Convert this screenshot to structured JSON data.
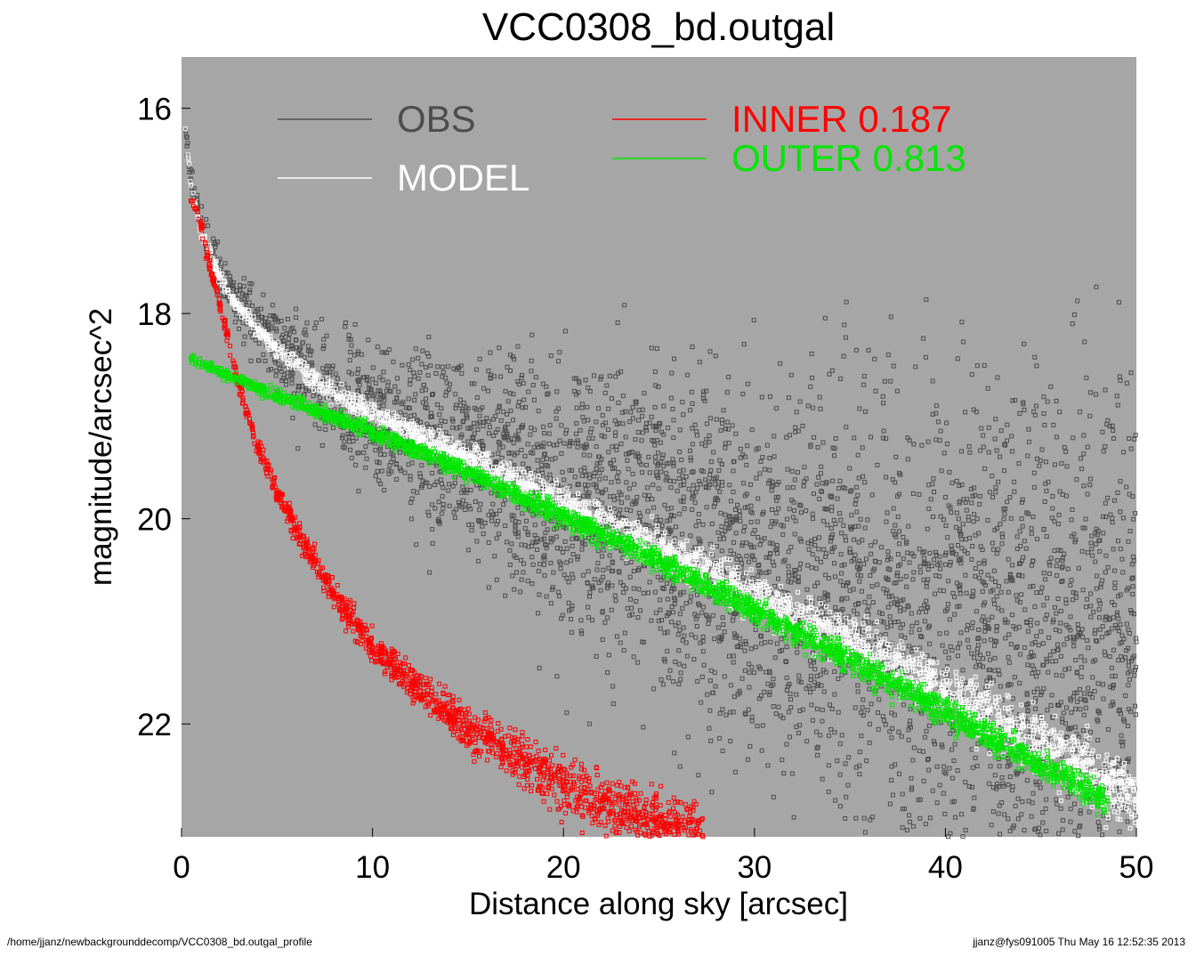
{
  "chart_data": {
    "type": "scatter",
    "title": "VCC0308_bd.outgal",
    "xlabel": "Distance along sky [arcsec]",
    "ylabel": "magnitude/arcsec^2",
    "xlim": [
      0,
      50
    ],
    "ylim": [
      23.1,
      15.5
    ],
    "y_inverted": true,
    "x_ticks": [
      0,
      10,
      20,
      30,
      40,
      50
    ],
    "y_ticks": [
      16,
      18,
      20,
      22
    ],
    "background_color": "#a6a6a6",
    "grid": false,
    "series": [
      {
        "name": "OBS",
        "color": "#4d4d4d",
        "x": [
          0.2,
          0.5,
          1,
          2,
          3,
          4,
          5,
          6,
          8,
          10,
          12,
          15,
          18,
          20,
          25,
          30,
          35,
          40,
          45,
          50
        ],
        "y": [
          16.2,
          16.7,
          17.1,
          17.6,
          17.9,
          18.1,
          18.3,
          18.45,
          18.75,
          18.9,
          19.1,
          19.3,
          19.55,
          19.7,
          20.05,
          20.4,
          20.7,
          20.9,
          21.1,
          21.2
        ]
      },
      {
        "name": "MODEL",
        "color": "#ffffff",
        "x": [
          0.2,
          0.5,
          1,
          2,
          3,
          4,
          5,
          6,
          8,
          10,
          12,
          15,
          18,
          20,
          25,
          30,
          35,
          40,
          45,
          50
        ],
        "y": [
          16.2,
          16.75,
          17.2,
          17.65,
          17.95,
          18.15,
          18.35,
          18.5,
          18.78,
          18.98,
          19.15,
          19.42,
          19.68,
          19.85,
          20.3,
          20.75,
          21.2,
          21.7,
          22.2,
          22.75
        ]
      },
      {
        "name": "INNER",
        "label": "INNER  0.187",
        "fraction": 0.187,
        "color": "#ff0000",
        "x": [
          0.5,
          1,
          1.5,
          2,
          3,
          4,
          5,
          6,
          8,
          10,
          12,
          14,
          16,
          18,
          20,
          22,
          24,
          26,
          27.3
        ],
        "y": [
          16.9,
          17.15,
          17.55,
          17.9,
          18.7,
          19.3,
          19.75,
          20.1,
          20.75,
          21.25,
          21.6,
          21.9,
          22.15,
          22.4,
          22.6,
          22.78,
          22.92,
          23.05,
          23.1
        ]
      },
      {
        "name": "OUTER",
        "label": "OUTER  0.813",
        "fraction": 0.813,
        "color": "#00e600",
        "x": [
          0.5,
          5,
          10,
          15,
          20,
          25,
          30,
          35,
          40,
          45,
          48.5
        ],
        "y": [
          18.45,
          18.8,
          19.15,
          19.55,
          19.98,
          20.42,
          20.9,
          21.38,
          21.88,
          22.4,
          22.75
        ]
      }
    ],
    "legend_placement": "top"
  },
  "footer": {
    "path": "/home/jjanz/newbackgrounddecomp/VCC0308_bd.outgal_profile",
    "stamp": "jjanz@fys091005  Thu May 16 12:52:35 2013"
  }
}
